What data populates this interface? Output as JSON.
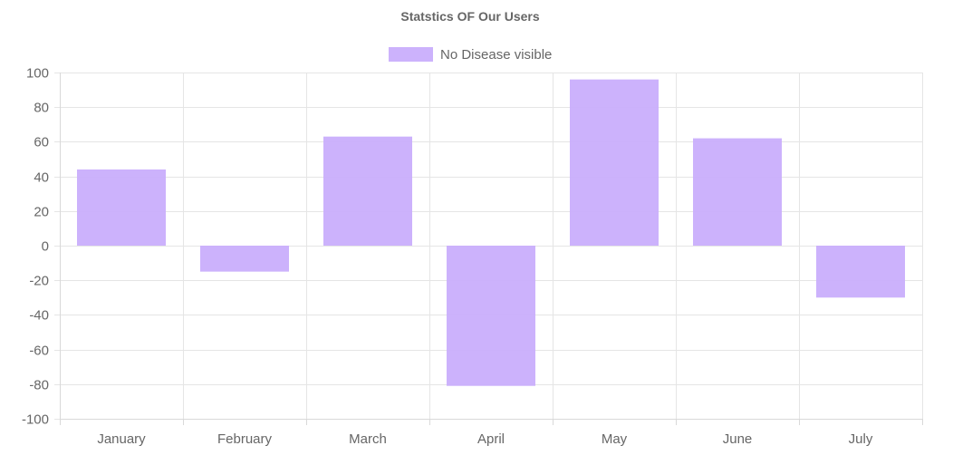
{
  "chart_data": {
    "type": "bar",
    "title": "Statstics OF Our Users",
    "xlabel": "",
    "ylabel": "",
    "categories": [
      "January",
      "February",
      "March",
      "April",
      "May",
      "June",
      "July"
    ],
    "series": [
      {
        "name": "No Disease visible",
        "values": [
          44,
          -15,
          63,
          -81,
          96,
          62,
          -30
        ],
        "color": "#c9aefc"
      }
    ],
    "ylim": [
      -100,
      100
    ],
    "yticks": [
      "100",
      "80",
      "60",
      "40",
      "20",
      "0",
      "-20",
      "-40",
      "-60",
      "-80",
      "-100"
    ],
    "grid": true,
    "legend_position": "top-center"
  }
}
